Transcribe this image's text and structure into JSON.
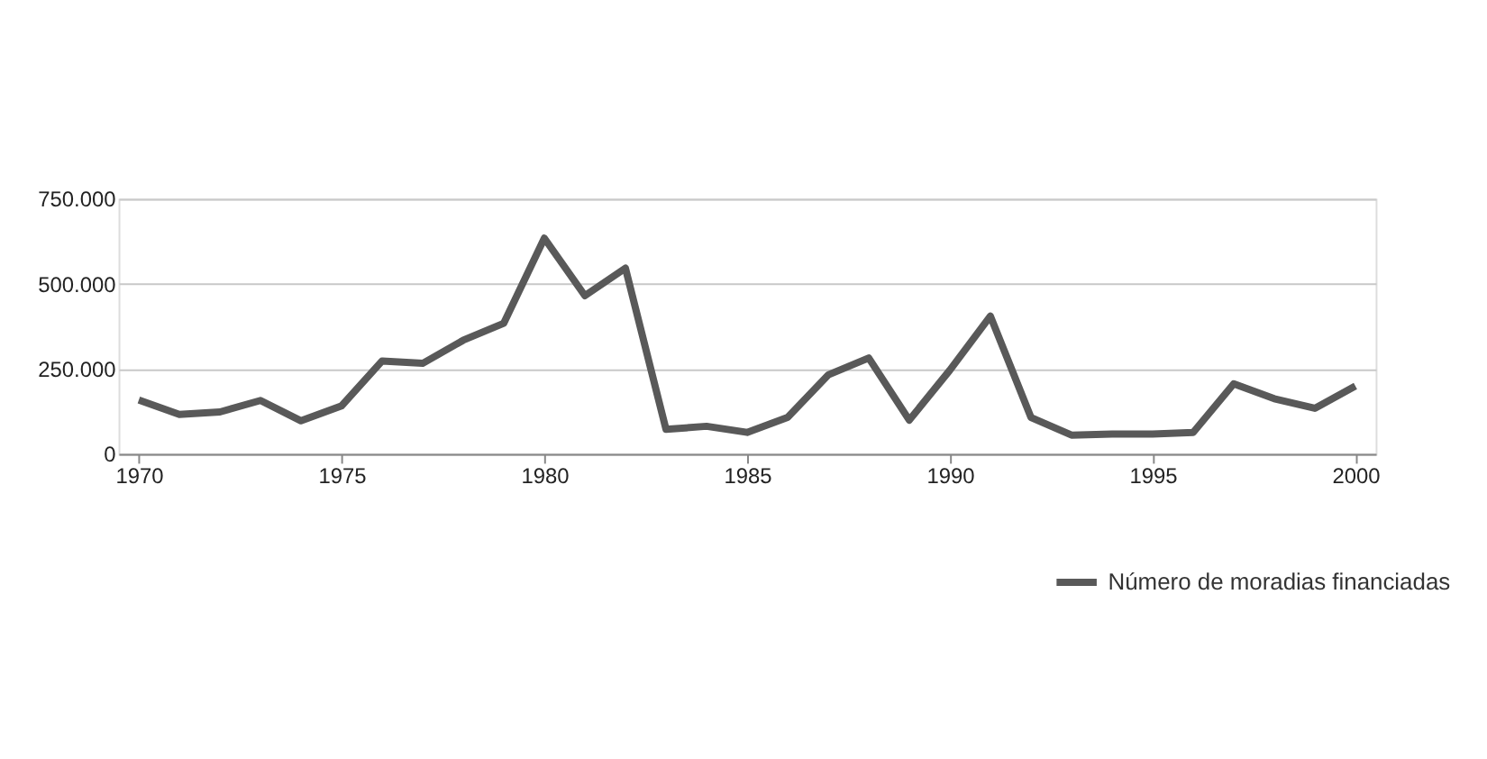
{
  "chart_data": {
    "type": "line",
    "x": [
      1970,
      1971,
      1972,
      1973,
      1974,
      1975,
      1976,
      1977,
      1978,
      1979,
      1980,
      1981,
      1982,
      1983,
      1984,
      1985,
      1986,
      1987,
      1988,
      1989,
      1990,
      1991,
      1992,
      1993,
      1994,
      1995,
      1996,
      1997,
      1998,
      1999,
      2000
    ],
    "series": [
      {
        "name": "Número de moradias financiadas",
        "color": "#595959",
        "values": [
          158000,
          116000,
          123000,
          157000,
          97000,
          141000,
          273000,
          266000,
          334000,
          384000,
          634000,
          465000,
          546000,
          72000,
          81000,
          63000,
          107000,
          232000,
          282000,
          99000,
          246000,
          405000,
          107000,
          55000,
          58000,
          58000,
          63000,
          206000,
          162000,
          134000,
          199000
        ]
      }
    ],
    "xlim": [
      1969.5,
      2000.5
    ],
    "xticks": [
      1970,
      1975,
      1980,
      1985,
      1990,
      1995,
      2000
    ],
    "ylim": [
      0,
      750000
    ],
    "yticks": [
      {
        "value": 0,
        "label": "0"
      },
      {
        "value": 250000,
        "label": "250.000"
      },
      {
        "value": 500000,
        "label": "500.000"
      },
      {
        "value": 750000,
        "label": "750.000"
      }
    ],
    "grid": "y",
    "legend": "bottom right",
    "marker": "none",
    "line_style": "solid"
  }
}
